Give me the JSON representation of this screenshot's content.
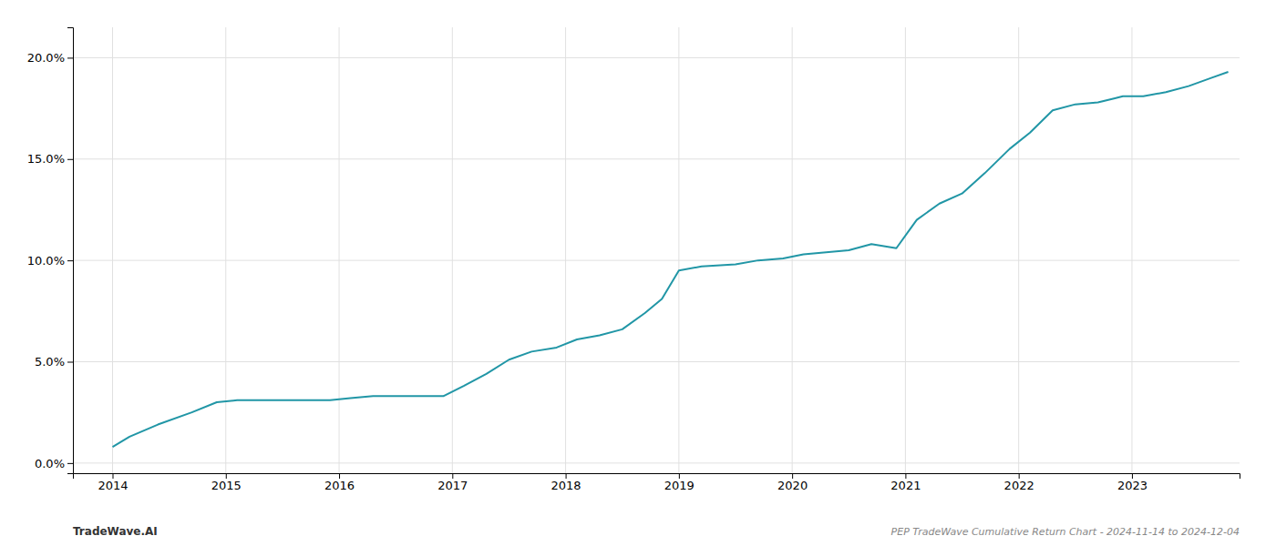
{
  "chart_data": {
    "type": "line",
    "title": "PEP TradeWave Cumulative Return Chart - 2024-11-14 to 2024-12-04",
    "annotations": [
      "TradeWave.AI"
    ],
    "x": [
      2014.0,
      2014.15,
      2014.4,
      2014.7,
      2014.92,
      2015.1,
      2015.4,
      2015.7,
      2015.92,
      2016.1,
      2016.3,
      2016.5,
      2016.7,
      2016.92,
      2017.1,
      2017.3,
      2017.5,
      2017.7,
      2017.92,
      2018.1,
      2018.3,
      2018.5,
      2018.7,
      2018.85,
      2019.0,
      2019.2,
      2019.5,
      2019.7,
      2019.92,
      2020.1,
      2020.3,
      2020.5,
      2020.7,
      2020.92,
      2021.1,
      2021.3,
      2021.5,
      2021.7,
      2021.92,
      2022.1,
      2022.3,
      2022.5,
      2022.7,
      2022.85,
      2022.92,
      2023.1,
      2023.3,
      2023.5,
      2023.7,
      2023.85
    ],
    "values": [
      0.008,
      0.013,
      0.019,
      0.025,
      0.03,
      0.031,
      0.031,
      0.031,
      0.031,
      0.032,
      0.033,
      0.033,
      0.033,
      0.033,
      0.038,
      0.044,
      0.051,
      0.055,
      0.057,
      0.061,
      0.063,
      0.066,
      0.074,
      0.081,
      0.095,
      0.097,
      0.098,
      0.1,
      0.101,
      0.103,
      0.104,
      0.105,
      0.108,
      0.106,
      0.12,
      0.128,
      0.133,
      0.143,
      0.155,
      0.163,
      0.174,
      0.177,
      0.178,
      0.18,
      0.181,
      0.181,
      0.183,
      0.186,
      0.19,
      0.193
    ],
    "color": "#2196a6",
    "xlim": [
      2013.65,
      2023.95
    ],
    "ylim": [
      -0.005,
      0.215
    ],
    "xticks": [
      2014,
      2015,
      2016,
      2017,
      2018,
      2019,
      2020,
      2021,
      2022,
      2023
    ],
    "yticks": [
      {
        "value": 0.0,
        "label": "0.0%"
      },
      {
        "value": 0.05,
        "label": "5.0%"
      },
      {
        "value": 0.1,
        "label": "10.0%"
      },
      {
        "value": 0.15,
        "label": "15.0%"
      },
      {
        "value": 0.2,
        "label": "20.0%"
      }
    ],
    "grid": true
  }
}
